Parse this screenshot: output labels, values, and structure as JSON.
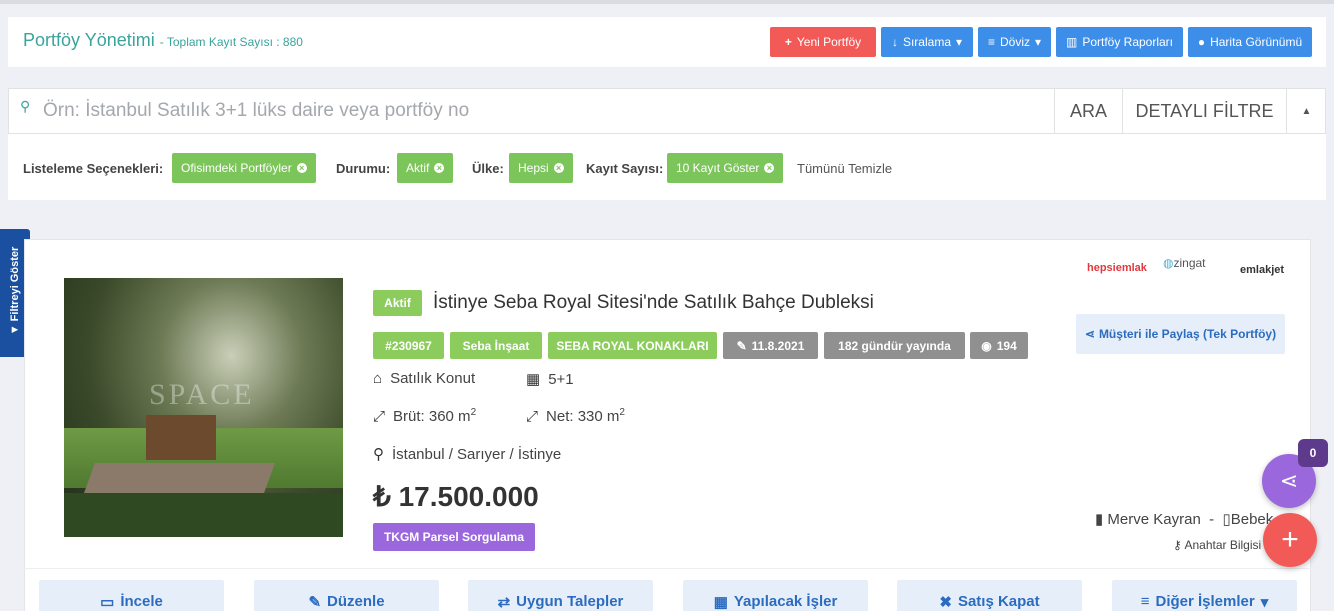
{
  "header": {
    "title": "Portföy Yönetimi",
    "subtitle": "- Toplam Kayıt Sayısı : 880",
    "buttons": [
      "Yeni Portföy",
      "Sıralama",
      "Döviz",
      "Portföy Raporları",
      "Harita Görünümü"
    ]
  },
  "search": {
    "placeholder": "Örn: İstanbul Satılık 3+1 lüks daire veya portföy no",
    "buttons": [
      "ARA",
      "DETAYLI FİLTRE"
    ]
  },
  "filters": {
    "items": [
      {
        "label": "Listeleme Seçenekleri:",
        "value": "Ofisimdeki Portföyler"
      },
      {
        "label": "Durumu:",
        "value": "Aktif"
      },
      {
        "label": "Ülke:",
        "value": "Hepsi"
      },
      {
        "label": "Kayıt Sayısı:",
        "value": "10 Kayıt Göster"
      }
    ],
    "clear": "Tümünü Temizle"
  },
  "side_tab": "Filtreyi Göster",
  "listing": {
    "watermark": "SPACE",
    "status": "Aktif",
    "title": "İstinye Seba Royal Sitesi'nde Satılık Bahçe Dubleksi",
    "tags": [
      "#230967",
      "Seba İnşaat",
      "SEBA ROYAL KONAKLARI",
      "11.8.2021",
      "182 gündür yayında",
      "194"
    ],
    "type": "Satılık Konut",
    "rooms": "5+1",
    "gross": "Brüt: 360 m",
    "net": "Net: 330 m",
    "area_unit_sup": "2",
    "location": "İstanbul / Sarıyer / İstinye",
    "price": "₺ 17.500.000",
    "tkgm": "TKGM Parsel Sorgulama",
    "portals": [
      "hepsiemlak",
      "zingat",
      "emlakjet"
    ],
    "share": "Müşteri ile Paylaş (Tek Portföy)",
    "agent": "Merve Kayran",
    "office": "Bebek",
    "key": "Anahtar Bilgisi",
    "actions": [
      "İncele",
      "Düzenle",
      "Uygun Talepler",
      "Yapılacak İşler",
      "Satış Kapat",
      "Diğer İşlemler"
    ]
  },
  "badge": "0"
}
